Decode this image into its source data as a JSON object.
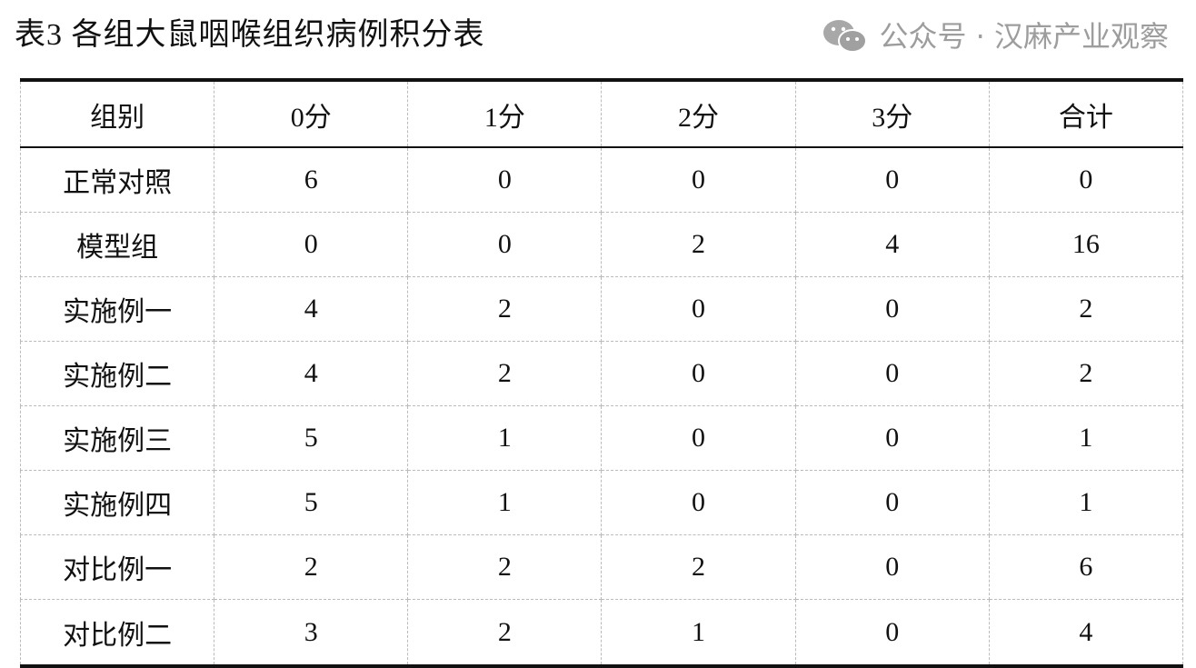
{
  "title": "表3  各组大鼠咽喉组织病例积分表",
  "table": {
    "headers": [
      "组别",
      "0分",
      "1分",
      "2分",
      "3分",
      "合计"
    ],
    "rows": [
      [
        "正常对照",
        "6",
        "0",
        "0",
        "0",
        "0"
      ],
      [
        "模型组",
        "0",
        "0",
        "2",
        "4",
        "16"
      ],
      [
        "实施例一",
        "4",
        "2",
        "0",
        "0",
        "2"
      ],
      [
        "实施例二",
        "4",
        "2",
        "0",
        "0",
        "2"
      ],
      [
        "实施例三",
        "5",
        "1",
        "0",
        "0",
        "1"
      ],
      [
        "实施例四",
        "5",
        "1",
        "0",
        "0",
        "1"
      ],
      [
        "对比例一",
        "2",
        "2",
        "2",
        "0",
        "6"
      ],
      [
        "对比例二",
        "3",
        "2",
        "1",
        "0",
        "4"
      ]
    ]
  },
  "watermark": {
    "icon": "wechat-icon",
    "text": "公众号 · 汉麻产业观察"
  }
}
